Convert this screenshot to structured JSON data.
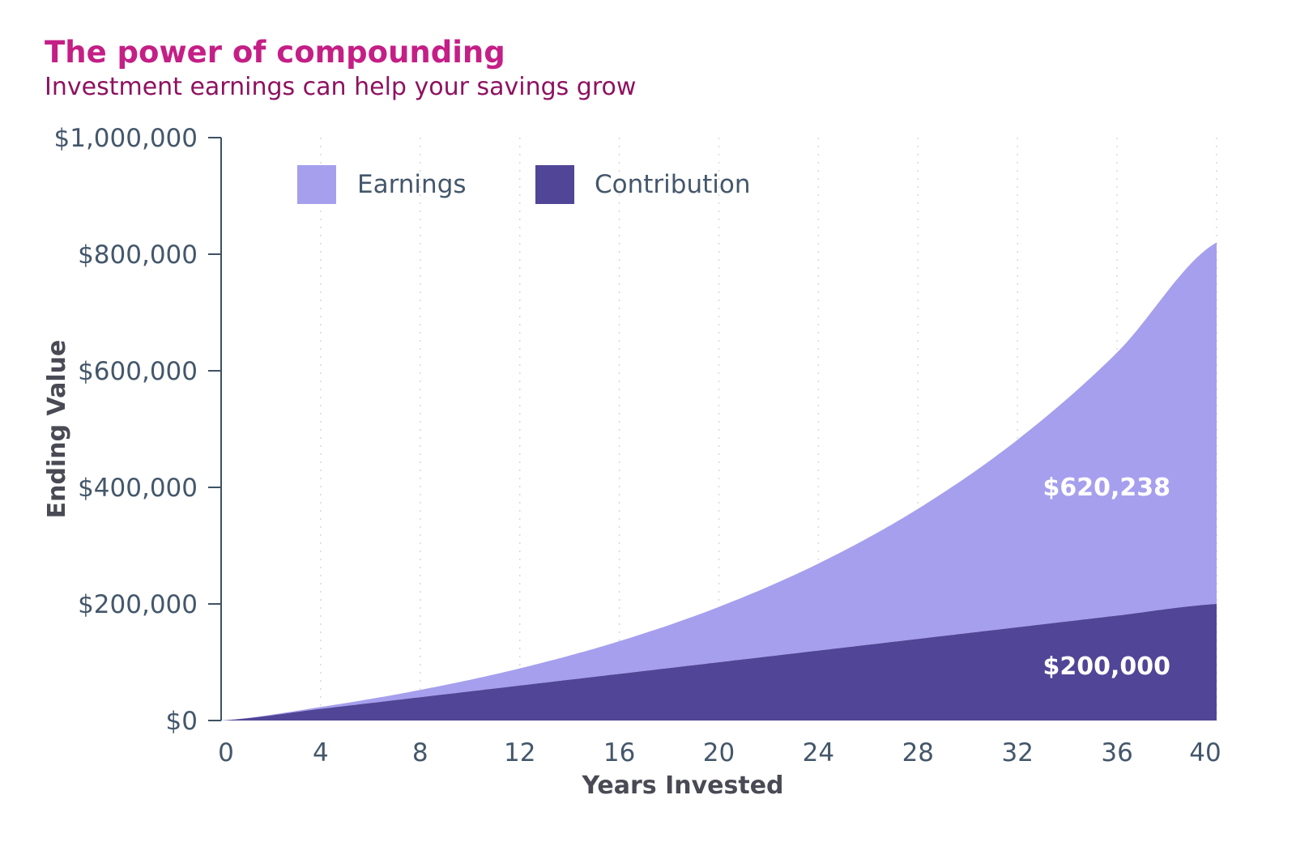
{
  "chart_data": {
    "type": "area",
    "stacked": true,
    "title": "The power of compounding",
    "subtitle": "Investment earnings can help your savings grow",
    "xlabel": "Years Invested",
    "ylabel": "Ending Value",
    "xlim": [
      0,
      40
    ],
    "ylim": [
      0,
      1000000
    ],
    "x_ticks": [
      0,
      4,
      8,
      12,
      16,
      20,
      24,
      28,
      32,
      36,
      40
    ],
    "x_tick_labels": [
      "0",
      "4",
      "8",
      "12",
      "16",
      "20",
      "24",
      "28",
      "32",
      "36",
      "40"
    ],
    "y_ticks": [
      0,
      200000,
      400000,
      600000,
      800000,
      1000000
    ],
    "y_tick_labels": [
      "$0",
      "$200,000",
      "$400,000",
      "$600,000",
      "$800,000",
      "$1,000,000"
    ],
    "grid": "vertical dotted",
    "legend_position": "top-left",
    "x": [
      0,
      4,
      8,
      12,
      16,
      20,
      24,
      28,
      32,
      36,
      40
    ],
    "series": [
      {
        "name": "Contribution",
        "color": "#514597",
        "values": [
          0,
          20000,
          40000,
          60000,
          80000,
          100000,
          120000,
          140000,
          160000,
          180000,
          200000
        ]
      },
      {
        "name": "Earnings",
        "color": "#a69fee",
        "values": [
          0,
          3186,
          12457,
          29411,
          56064,
          94964,
          149323,
          223199,
          321716,
          451340,
          620238
        ]
      }
    ],
    "data_labels": [
      {
        "series": "Earnings",
        "text": "$620,238"
      },
      {
        "series": "Contribution",
        "text": "$200,000"
      }
    ]
  }
}
